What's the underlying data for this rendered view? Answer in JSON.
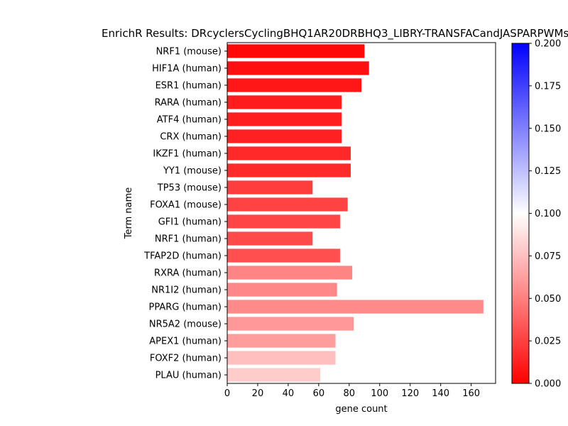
{
  "chart_data": {
    "type": "bar",
    "orientation": "horizontal",
    "title": "EnrichR Results: DRcyclersCyclingBHQ1AR20DRBHQ3_LIBRY-TRANSFACandJASPARPWMs",
    "xlabel": "gene count",
    "ylabel": "Term name",
    "xlim": [
      0,
      176
    ],
    "xticks": [
      0,
      20,
      40,
      60,
      80,
      100,
      120,
      140,
      160
    ],
    "grid": false,
    "categories": [
      "NRF1 (mouse)",
      "HIF1A (human)",
      "ESR1 (human)",
      "RARA (human)",
      "ATF4 (human)",
      "CRX (human)",
      "IKZF1 (human)",
      "YY1 (mouse)",
      "TP53 (mouse)",
      "FOXA1 (mouse)",
      "GFI1 (human)",
      "NRF1 (human)",
      "TFAP2D (human)",
      "RXRA (human)",
      "NR1I2 (human)",
      "PPARG (human)",
      "NR5A2 (mouse)",
      "APEX1 (human)",
      "FOXF2 (human)",
      "PLAU (human)"
    ],
    "values": [
      90,
      93,
      88,
      75,
      75,
      75,
      81,
      81,
      56,
      79,
      74,
      56,
      74,
      82,
      72,
      168,
      83,
      71,
      71,
      61
    ],
    "color_values": [
      0.003,
      0.006,
      0.009,
      0.011,
      0.012,
      0.013,
      0.016,
      0.017,
      0.024,
      0.026,
      0.027,
      0.029,
      0.031,
      0.052,
      0.053,
      0.054,
      0.06,
      0.061,
      0.075,
      0.08
    ],
    "colorbar": {
      "min": 0.0,
      "max": 0.2,
      "ticks": [
        0.0,
        0.025,
        0.05,
        0.075,
        0.1,
        0.125,
        0.15,
        0.175,
        0.2
      ],
      "tick_labels": [
        "0.000",
        "0.025",
        "0.050",
        "0.075",
        "0.100",
        "0.125",
        "0.150",
        "0.175",
        "0.200"
      ],
      "colormap": [
        "#ff0000",
        "#ffffff",
        "#0000ff"
      ]
    }
  }
}
